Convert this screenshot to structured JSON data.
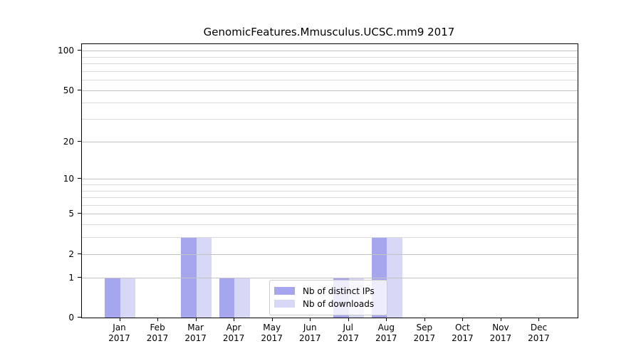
{
  "title": "GenomicFeatures.Mmusculus.UCSC.mm9 2017",
  "colors": {
    "series_ips": "#a6a6ef",
    "series_downloads": "#d7d7f6",
    "grid_major": "#d4d4d4",
    "grid_minor": "#efefef",
    "grid_over_bars": "rgba(120,120,120,0.18)",
    "axis": "#000000",
    "legend_border": "#cccccc"
  },
  "legend": {
    "items": [
      {
        "label": "Nb of distinct IPs",
        "color": "#a6a6ef"
      },
      {
        "label": "Nb of downloads",
        "color": "#d7d7f6"
      }
    ]
  },
  "chart_data": {
    "type": "bar",
    "title": "GenomicFeatures.Mmusculus.UCSC.mm9 2017",
    "categories": [
      "Jan 2017",
      "Feb 2017",
      "Mar 2017",
      "Apr 2017",
      "May 2017",
      "Jun 2017",
      "Jul 2017",
      "Aug 2017",
      "Sep 2017",
      "Oct 2017",
      "Nov 2017",
      "Dec 2017"
    ],
    "x_tick_month": [
      "Jan",
      "Feb",
      "Mar",
      "Apr",
      "May",
      "Jun",
      "Jul",
      "Aug",
      "Sep",
      "Oct",
      "Nov",
      "Dec"
    ],
    "x_tick_year": "2017",
    "series": [
      {
        "name": "Nb of distinct IPs",
        "color": "#a6a6ef",
        "values": [
          1,
          0,
          3,
          1,
          0,
          0,
          1,
          3,
          0,
          0,
          0,
          0
        ]
      },
      {
        "name": "Nb of downloads",
        "color": "#d7d7f6",
        "values": [
          1,
          0,
          3,
          1,
          0,
          0,
          1,
          3,
          0,
          0,
          0,
          0
        ]
      }
    ],
    "yscale": "log1p",
    "ylim": [
      0,
      112
    ],
    "y_ticks": [
      "100",
      "50",
      "20",
      "10",
      "5",
      "2",
      "1",
      "0"
    ],
    "y_tick_values": [
      100,
      50,
      20,
      10,
      5,
      2,
      1,
      0
    ],
    "gridlines": {
      "major": [
        1,
        2,
        5,
        10,
        20,
        50,
        100
      ],
      "minor": [
        3,
        4,
        6,
        7,
        8,
        9,
        30,
        40,
        60,
        70,
        80,
        90
      ]
    },
    "grid": "on",
    "legend_position": "lower center",
    "bar_group": "side-by-side, centered on month tick, bar width 0.4 slot units"
  }
}
